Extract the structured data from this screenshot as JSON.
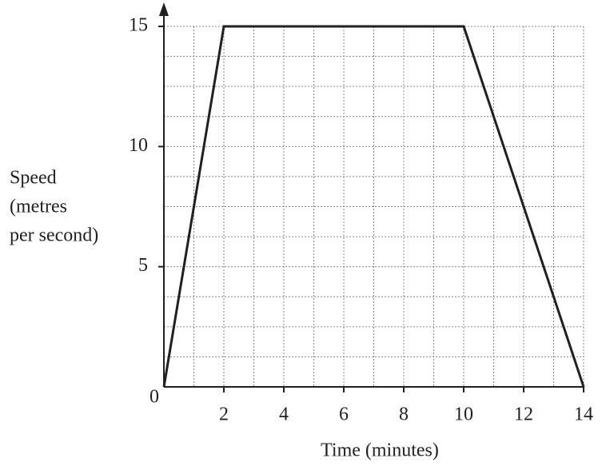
{
  "chart_data": {
    "type": "line",
    "xlabel": "Time (minutes)",
    "ylabel": [
      "Speed",
      "(metres",
      "per second)"
    ],
    "x": [
      0,
      2,
      10,
      14
    ],
    "series": [
      {
        "color": "#231f20",
        "values": [
          0,
          15,
          15,
          0
        ]
      }
    ],
    "xlim": [
      0,
      14
    ],
    "ylim": [
      0,
      15
    ],
    "xticks": [
      2,
      4,
      6,
      8,
      10,
      12,
      14
    ],
    "yticks": [
      0,
      5,
      10,
      15
    ],
    "grid": true
  }
}
